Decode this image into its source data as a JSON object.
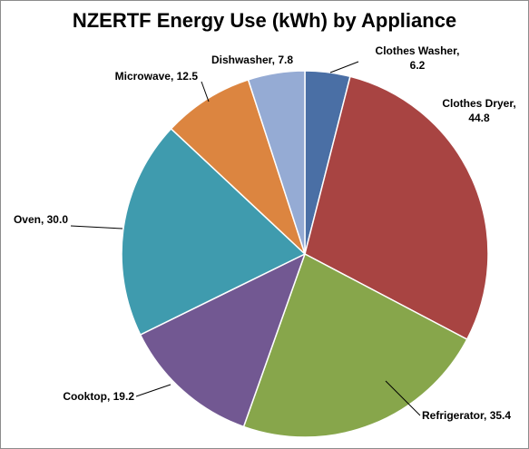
{
  "chart_data": {
    "type": "pie",
    "title": "NZERTF Energy Use (kWh) by Appliance",
    "slices": [
      {
        "label": "Clothes Washer",
        "value": 6.2,
        "color": "#4a6fa5"
      },
      {
        "label": "Clothes Dryer",
        "value": 44.8,
        "color": "#a84442"
      },
      {
        "label": "Refrigerator",
        "value": 35.4,
        "color": "#87a64b"
      },
      {
        "label": "Cooktop",
        "value": 19.2,
        "color": "#725892"
      },
      {
        "label": "Oven",
        "value": 30.0,
        "color": "#3f9bae"
      },
      {
        "label": "Microwave",
        "value": 12.5,
        "color": "#dc8540"
      },
      {
        "label": "Dishwasher",
        "value": 7.8,
        "color": "#95abd4"
      }
    ],
    "label_format": "{label}, {value}",
    "value_decimals": 1
  }
}
